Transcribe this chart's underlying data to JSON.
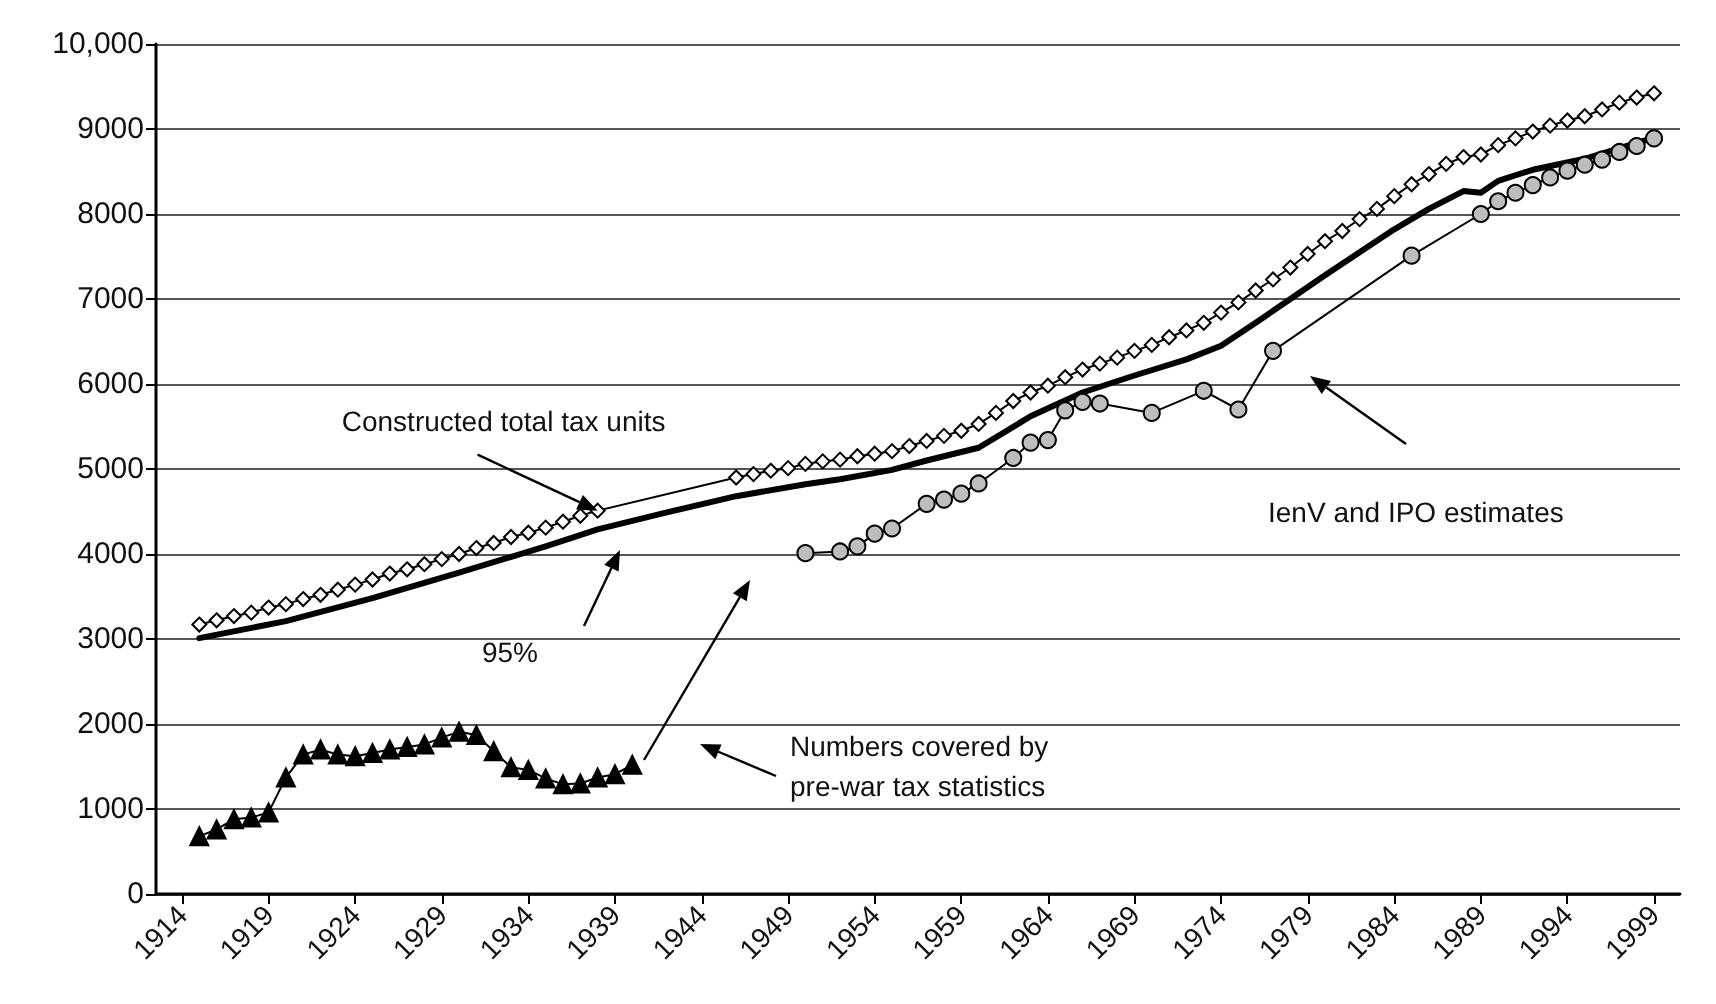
{
  "chart_data": {
    "type": "line",
    "xlim": [
      1912.5,
      2000.5
    ],
    "xticks": [
      1914,
      1919,
      1924,
      1929,
      1934,
      1939,
      1944,
      1949,
      1954,
      1959,
      1964,
      1969,
      1974,
      1979,
      1984,
      1989,
      1994,
      1999
    ],
    "ylim": [
      0,
      10000
    ],
    "yticks": [
      0,
      1000,
      2000,
      3000,
      4000,
      5000,
      6000,
      7000,
      8000,
      9000,
      {
        "value": 10000,
        "label": "10,000"
      }
    ],
    "grid": "y",
    "series": [
      {
        "color": "#000000",
        "marker": "diamond",
        "line_style": "solid",
        "x": [
          1915,
          1916,
          1917,
          1918,
          1919,
          1920,
          1921,
          1922,
          1923,
          1924,
          1925,
          1926,
          1927,
          1928,
          1929,
          1930,
          1931,
          1932,
          1933,
          1934,
          1935,
          1936,
          1937,
          1938,
          1946,
          1947,
          1948,
          1949,
          1950,
          1951,
          1952,
          1953,
          1954,
          1955,
          1956,
          1957,
          1958,
          1959,
          1960,
          1961,
          1962,
          1963,
          1964,
          1965,
          1966,
          1967,
          1968,
          1969,
          1970,
          1971,
          1972,
          1973,
          1974,
          1975,
          1976,
          1977,
          1978,
          1979,
          1980,
          1981,
          1982,
          1983,
          1984,
          1985,
          1986,
          1987,
          1988,
          1989,
          1990,
          1991,
          1992,
          1993,
          1994,
          1995,
          1996,
          1997,
          1998,
          1999
        ],
        "values": [
          3170,
          3220,
          3270,
          3310,
          3370,
          3410,
          3470,
          3520,
          3580,
          3640,
          3700,
          3770,
          3820,
          3880,
          3940,
          4000,
          4070,
          4130,
          4200,
          4250,
          4310,
          4380,
          4450,
          4510,
          4900,
          4940,
          4980,
          5010,
          5060,
          5090,
          5110,
          5150,
          5180,
          5210,
          5270,
          5330,
          5390,
          5450,
          5530,
          5660,
          5800,
          5900,
          5980,
          6080,
          6170,
          6240,
          6310,
          6390,
          6460,
          6550,
          6630,
          6720,
          6840,
          6960,
          7100,
          7230,
          7370,
          7530,
          7680,
          7800,
          7940,
          8060,
          8210,
          8350,
          8470,
          8590,
          8670,
          8700,
          8810,
          8890,
          8970,
          9040,
          9100,
          9150,
          9230,
          9310,
          9370,
          9420
        ]
      },
      {
        "color": "#000000",
        "marker": "none",
        "line_style": "solid",
        "x": [
          1915,
          1920,
          1925,
          1930,
          1935,
          1938,
          1942,
          1946,
          1950,
          1952,
          1955,
          1957,
          1960,
          1963,
          1966,
          1969,
          1972,
          1974,
          1976,
          1978,
          1980,
          1982,
          1984,
          1986,
          1988,
          1989,
          1990,
          1992,
          1995,
          1999
        ],
        "values": [
          3010,
          3210,
          3480,
          3780,
          4090,
          4290,
          4490,
          4680,
          4820,
          4880,
          4990,
          5100,
          5250,
          5620,
          5900,
          6100,
          6290,
          6450,
          6720,
          7000,
          7280,
          7550,
          7820,
          8060,
          8270,
          8250,
          8390,
          8520,
          8650,
          8900
        ]
      },
      {
        "color": "#000000",
        "marker": "circle",
        "line_style": "solid",
        "x": [
          1950,
          1952,
          1953,
          1954,
          1955,
          1957,
          1958,
          1959,
          1960,
          1962,
          1963,
          1964,
          1965,
          1966,
          1967,
          1970,
          1973,
          1975,
          1977,
          1985,
          1989,
          1990,
          1991,
          1992,
          1993,
          1994,
          1995,
          1996,
          1997,
          1998,
          1999
        ],
        "values": [
          4010,
          4030,
          4090,
          4240,
          4300,
          4590,
          4640,
          4710,
          4830,
          5130,
          5310,
          5340,
          5690,
          5790,
          5770,
          5660,
          5920,
          5700,
          6390,
          7510,
          8000,
          8150,
          8250,
          8340,
          8430,
          8510,
          8580,
          8640,
          8730,
          8800,
          8890
        ]
      },
      {
        "color": "#000000",
        "marker": "triangle",
        "line_style": "solid",
        "x": [
          1915,
          1916,
          1917,
          1918,
          1919,
          1920,
          1921,
          1922,
          1923,
          1924,
          1925,
          1926,
          1927,
          1928,
          1929,
          1930,
          1931,
          1932,
          1933,
          1934,
          1935,
          1936,
          1937,
          1938,
          1939,
          1940
        ],
        "values": [
          680,
          760,
          880,
          900,
          960,
          1370,
          1640,
          1700,
          1640,
          1620,
          1660,
          1700,
          1730,
          1760,
          1840,
          1910,
          1870,
          1680,
          1490,
          1460,
          1360,
          1290,
          1300,
          1370,
          1410,
          1520
        ]
      }
    ],
    "annotations": [
      {
        "text": "Constructed total tax units",
        "x": 1938,
        "y": 4510
      },
      "95%",
      "IenV and IPO estimates",
      "Numbers covered by\npre-war tax statistics"
    ]
  }
}
